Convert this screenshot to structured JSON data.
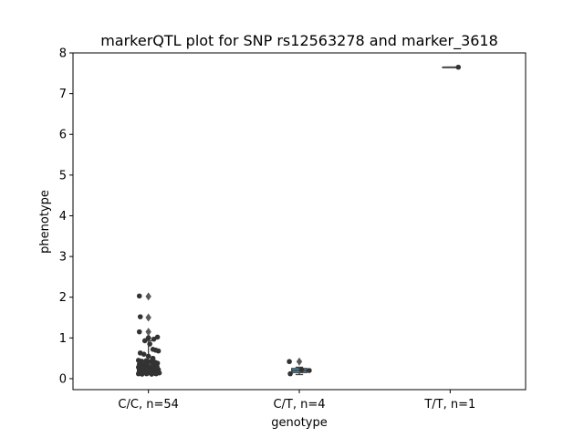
{
  "chart_data": {
    "type": "box",
    "title": "markerQTL plot for SNP rs12563278 and marker_3618",
    "xlabel": "genotype",
    "ylabel": "phenotype",
    "ylim": [
      -0.27,
      8.0
    ],
    "yticks": [
      0,
      1,
      2,
      3,
      4,
      5,
      6,
      7,
      8
    ],
    "categories": [
      "C/C, n=54",
      "C/T, n=4",
      "T/T, n=1"
    ],
    "grid": false,
    "legend": "none",
    "box_color": "#4fb0e0",
    "point_color": "#333333",
    "groups": [
      {
        "label": "C/C, n=54",
        "q1": 0.15,
        "median": 0.3,
        "q3": 0.43,
        "whisker_low": 0.1,
        "whisker_high": 0.93,
        "outliers": [
          1.0,
          1.15,
          1.5,
          2.02
        ],
        "points": [
          {
            "x": -0.2,
            "y": 2.03
          },
          {
            "x": -0.18,
            "y": 1.52
          },
          {
            "x": -0.2,
            "y": 1.15
          },
          {
            "x": 0.0,
            "y": 1.0
          },
          {
            "x": 0.2,
            "y": 1.02
          },
          {
            "x": 0.12,
            "y": 0.97
          },
          {
            "x": -0.08,
            "y": 0.93
          },
          {
            "x": 0.03,
            "y": 0.85
          },
          {
            "x": 0.1,
            "y": 0.72
          },
          {
            "x": 0.16,
            "y": 0.7
          },
          {
            "x": 0.22,
            "y": 0.68
          },
          {
            "x": -0.18,
            "y": 0.63
          },
          {
            "x": -0.1,
            "y": 0.6
          },
          {
            "x": 0.1,
            "y": 0.5
          },
          {
            "x": 0.0,
            "y": 0.55
          },
          {
            "x": -0.22,
            "y": 0.45
          },
          {
            "x": -0.15,
            "y": 0.43
          },
          {
            "x": -0.05,
            "y": 0.44
          },
          {
            "x": 0.05,
            "y": 0.42
          },
          {
            "x": 0.15,
            "y": 0.4
          },
          {
            "x": 0.2,
            "y": 0.38
          },
          {
            "x": -0.2,
            "y": 0.35
          },
          {
            "x": -0.12,
            "y": 0.33
          },
          {
            "x": -0.02,
            "y": 0.32
          },
          {
            "x": 0.08,
            "y": 0.3
          },
          {
            "x": 0.18,
            "y": 0.31
          },
          {
            "x": -0.22,
            "y": 0.28
          },
          {
            "x": -0.15,
            "y": 0.26
          },
          {
            "x": -0.06,
            "y": 0.25
          },
          {
            "x": 0.03,
            "y": 0.24
          },
          {
            "x": 0.12,
            "y": 0.23
          },
          {
            "x": 0.22,
            "y": 0.22
          },
          {
            "x": -0.2,
            "y": 0.21
          },
          {
            "x": -0.1,
            "y": 0.2
          },
          {
            "x": 0.0,
            "y": 0.19
          },
          {
            "x": 0.1,
            "y": 0.18
          },
          {
            "x": 0.2,
            "y": 0.17
          },
          {
            "x": -0.18,
            "y": 0.16
          },
          {
            "x": -0.08,
            "y": 0.15
          },
          {
            "x": 0.05,
            "y": 0.14
          },
          {
            "x": 0.15,
            "y": 0.13
          },
          {
            "x": 0.24,
            "y": 0.14
          },
          {
            "x": -0.22,
            "y": 0.12
          },
          {
            "x": -0.14,
            "y": 0.11
          },
          {
            "x": -0.04,
            "y": 0.12
          },
          {
            "x": 0.07,
            "y": 0.11
          },
          {
            "x": 0.17,
            "y": 0.12
          },
          {
            "x": -0.12,
            "y": 0.3
          },
          {
            "x": 0.12,
            "y": 0.27
          },
          {
            "x": -0.05,
            "y": 0.37
          },
          {
            "x": 0.19,
            "y": 0.29
          },
          {
            "x": -0.2,
            "y": 0.18
          },
          {
            "x": 0.1,
            "y": 0.36
          },
          {
            "x": -0.02,
            "y": 0.22
          }
        ]
      },
      {
        "label": "C/T, n=4",
        "q1": 0.15,
        "median": 0.2,
        "q3": 0.25,
        "whisker_low": 0.1,
        "whisker_high": 0.28,
        "outliers": [
          0.42
        ],
        "points": [
          {
            "x": -0.22,
            "y": 0.42
          },
          {
            "x": -0.2,
            "y": 0.12
          },
          {
            "x": 0.22,
            "y": 0.2
          },
          {
            "x": 0.05,
            "y": 0.22
          }
        ]
      },
      {
        "label": "T/T, n=1",
        "q1": 7.65,
        "median": 7.65,
        "q3": 7.65,
        "whisker_low": 7.65,
        "whisker_high": 7.65,
        "outliers": [],
        "points": [
          {
            "x": 0.18,
            "y": 7.65
          }
        ]
      }
    ]
  }
}
